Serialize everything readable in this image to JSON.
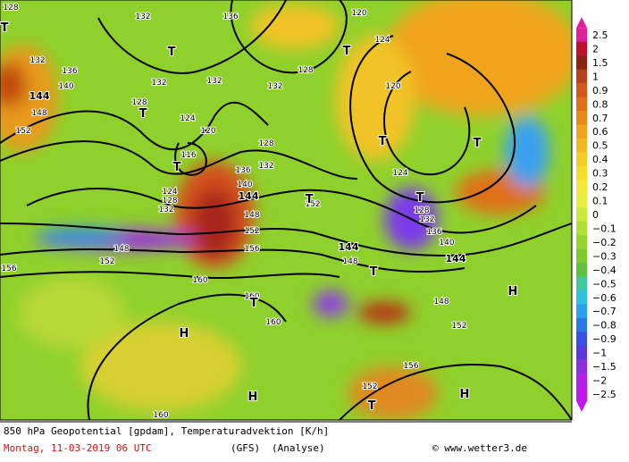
{
  "map": {
    "contour_labels": [
      "128",
      "132",
      "136",
      "120",
      "124",
      "136",
      "140",
      "144",
      "148",
      "152",
      "132",
      "128",
      "132",
      "132",
      "132",
      "120",
      "128",
      "124",
      "120",
      "116",
      "128",
      "132",
      "136",
      "140",
      "144",
      "148",
      "152",
      "156",
      "124",
      "128",
      "132",
      "124",
      "128",
      "132",
      "136",
      "140",
      "144",
      "144",
      "148",
      "152",
      "148",
      "152",
      "156",
      "160",
      "160",
      "160",
      "148",
      "152",
      "156",
      "152",
      "160"
    ],
    "pressure_centers": [
      "T",
      "T",
      "T",
      "T",
      "T",
      "T",
      "T",
      "T",
      "T",
      "T",
      "T",
      "T",
      "H",
      "H",
      "H",
      "H"
    ]
  },
  "legend": {
    "labels": [
      "2.5",
      "2",
      "1.5",
      "1",
      "0.9",
      "0.8",
      "0.7",
      "0.6",
      "0.5",
      "0.4",
      "0.3",
      "0.2",
      "0.1",
      "0",
      "−0.1",
      "−0.2",
      "−0.3",
      "−0.4",
      "−0.5",
      "−0.6",
      "−0.7",
      "−0.8",
      "−0.9",
      "−1",
      "−1.5",
      "−2",
      "−2.5"
    ]
  },
  "footer": {
    "title": "850 hPa Geopotential [gpdam], Temperaturadvektion [K/h]",
    "date": "Montag, 11-03-2019  06 UTC",
    "model": "(GFS)",
    "run": "(Analyse)",
    "credit": "© www.wetter3.de"
  }
}
